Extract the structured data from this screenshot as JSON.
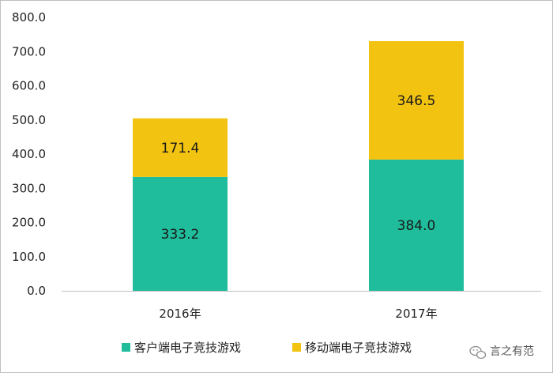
{
  "chart_data": {
    "type": "bar",
    "stacked": true,
    "categories": [
      "2016年",
      "2017年"
    ],
    "series": [
      {
        "name": "客户端电子竞技游戏",
        "values": [
          333.2,
          384.0
        ],
        "color": "#1fbd9b"
      },
      {
        "name": "移动端电子竞技游戏",
        "values": [
          171.4,
          346.5
        ],
        "color": "#f2c311"
      }
    ],
    "ylim": [
      0,
      800
    ],
    "yticks": [
      "0.0",
      "100.0",
      "200.0",
      "300.0",
      "400.0",
      "500.0",
      "600.0",
      "700.0",
      "800.0"
    ],
    "data_labels": [
      [
        "333.2",
        "384.0"
      ],
      [
        "171.4",
        "346.5"
      ]
    ],
    "legend_position": "bottom",
    "grid": false
  },
  "watermark": {
    "text": "言之有范",
    "icon": "wechat-icon"
  }
}
